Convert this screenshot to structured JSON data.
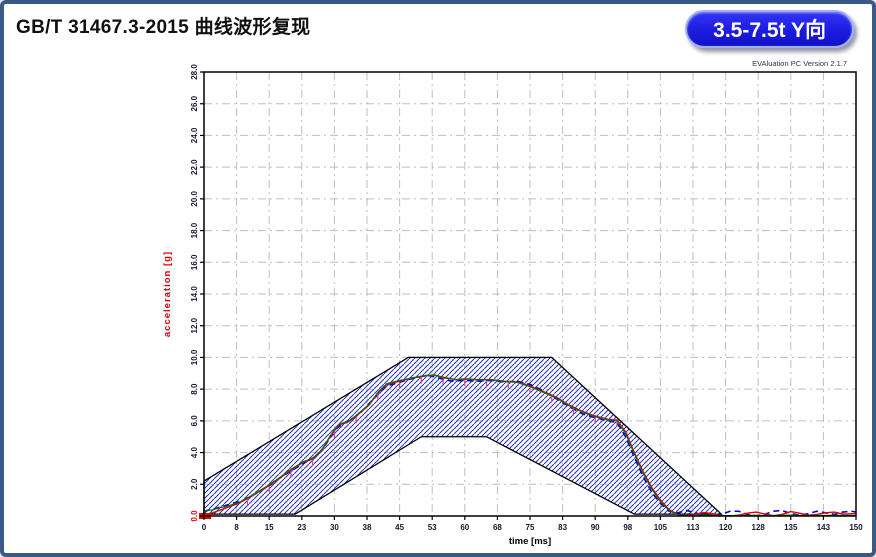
{
  "page": {
    "title": "GB/T 31467.3-2015 曲线波形复现",
    "badge_label": "3.5-7.5t Y向",
    "version_text": "EVAluation PC Version 2.1.7"
  },
  "colors": {
    "page_border": "#3a5a86",
    "badge_bg": "#1c1cdf",
    "badge_text": "#ffffff",
    "corridor_hatch": "#2030c0",
    "corridor_outline": "#000000",
    "grid": "#bdbdbd",
    "axis": "#000000",
    "tick_label": "#141830",
    "zero_label": "#dd0000",
    "ylabel_color": "#dd0000"
  },
  "chart_data": {
    "type": "line",
    "title": "",
    "xlabel": "time [ms]",
    "ylabel": "acceleration [g]",
    "xlim": [
      0,
      150
    ],
    "ylim": [
      0,
      28
    ],
    "grid": true,
    "legend": "none",
    "x_tick_values": [
      0,
      7.5,
      15,
      22.5,
      30,
      37.5,
      45,
      52.5,
      60,
      67.5,
      75,
      82.5,
      90,
      97.5,
      105,
      112.5,
      120,
      127.5,
      135,
      142.5,
      150
    ],
    "x_tick_labels": [
      "0",
      "8",
      "15",
      "23",
      "30",
      "38",
      "45",
      "53",
      "60",
      "68",
      "75",
      "83",
      "90",
      "98",
      "105",
      "113",
      "120",
      "128",
      "135",
      "143",
      "150"
    ],
    "y_tick_values": [
      0,
      2,
      4,
      6,
      8,
      10,
      12,
      14,
      16,
      18,
      20,
      22,
      24,
      26,
      28
    ],
    "y_tick_labels": [
      "0.0",
      "2.0",
      "4.0",
      "6.0",
      "8.0",
      "10.0",
      "12.0",
      "14.0",
      "16.0",
      "18.0",
      "20.0",
      "22.0",
      "24.0",
      "26.0",
      "28.0"
    ],
    "corridor": {
      "upper": [
        [
          0,
          2.2
        ],
        [
          47,
          10
        ],
        [
          80,
          10
        ],
        [
          119,
          0.12
        ]
      ],
      "lower": [
        [
          0,
          0.12
        ],
        [
          21,
          0.12
        ],
        [
          50,
          5
        ],
        [
          65,
          5
        ],
        [
          99,
          0.12
        ],
        [
          119,
          0.12
        ]
      ]
    },
    "series": [
      {
        "name": "measured-curve",
        "color": "#0000dd",
        "dash": "6 4",
        "width": 1.6,
        "points": [
          [
            0,
            0.3
          ],
          [
            3,
            0.5
          ],
          [
            6,
            0.75
          ],
          [
            9,
            1.0
          ],
          [
            12,
            1.45
          ],
          [
            15,
            1.9
          ],
          [
            18,
            2.5
          ],
          [
            21,
            3.0
          ],
          [
            24,
            3.5
          ],
          [
            26,
            3.8
          ],
          [
            28,
            4.5
          ],
          [
            30,
            5.4
          ],
          [
            32,
            5.85
          ],
          [
            34,
            6.1
          ],
          [
            36,
            6.5
          ],
          [
            38,
            7.1
          ],
          [
            40,
            7.7
          ],
          [
            42,
            8.2
          ],
          [
            44,
            8.35
          ],
          [
            47,
            8.6
          ],
          [
            50,
            8.8
          ],
          [
            52,
            8.85
          ],
          [
            54,
            8.7
          ],
          [
            57,
            8.5
          ],
          [
            60,
            8.55
          ],
          [
            63,
            8.5
          ],
          [
            66,
            8.55
          ],
          [
            69,
            8.45
          ],
          [
            72,
            8.5
          ],
          [
            75,
            8.3
          ],
          [
            78,
            7.9
          ],
          [
            81,
            7.4
          ],
          [
            84,
            6.9
          ],
          [
            87,
            6.45
          ],
          [
            90,
            6.2
          ],
          [
            93,
            6.0
          ],
          [
            95,
            5.9
          ],
          [
            97,
            5.0
          ],
          [
            99,
            3.7
          ],
          [
            101,
            2.5
          ],
          [
            103,
            1.5
          ],
          [
            105,
            0.8
          ],
          [
            107,
            0.3
          ],
          [
            109,
            0.2
          ],
          [
            111,
            0.35
          ],
          [
            113,
            0.2
          ],
          [
            115,
            0.05
          ],
          [
            117,
            0.0
          ],
          [
            119,
            0.1
          ],
          [
            121,
            0.3
          ],
          [
            123,
            0.3
          ],
          [
            125,
            0.1
          ],
          [
            127,
            0.02
          ],
          [
            129,
            0.1
          ],
          [
            131,
            0.3
          ],
          [
            133,
            0.35
          ],
          [
            135,
            0.15
          ],
          [
            137,
            0.05
          ],
          [
            139,
            0.15
          ],
          [
            141,
            0.3
          ],
          [
            143,
            0.2
          ],
          [
            145,
            0.1
          ],
          [
            147,
            0.25
          ],
          [
            149,
            0.3
          ],
          [
            150,
            0.25
          ]
        ]
      },
      {
        "name": "reference-curve",
        "color": "#e10000",
        "dash": "",
        "width": 1.4,
        "points": [
          [
            0,
            0.05
          ],
          [
            2,
            0.2
          ],
          [
            5,
            0.5
          ],
          [
            8,
            0.8
          ],
          [
            11,
            1.25
          ],
          [
            14,
            1.75
          ],
          [
            17,
            2.3
          ],
          [
            20,
            2.9
          ],
          [
            23,
            3.4
          ],
          [
            25,
            3.6
          ],
          [
            27,
            4.1
          ],
          [
            29,
            5.0
          ],
          [
            31,
            5.75
          ],
          [
            33,
            5.9
          ],
          [
            35,
            6.3
          ],
          [
            38,
            7.0
          ],
          [
            40,
            7.75
          ],
          [
            42,
            8.3
          ],
          [
            45,
            8.5
          ],
          [
            48,
            8.7
          ],
          [
            51,
            8.85
          ],
          [
            53,
            8.9
          ],
          [
            55,
            8.75
          ],
          [
            58,
            8.6
          ],
          [
            60,
            8.65
          ],
          [
            63,
            8.6
          ],
          [
            66,
            8.6
          ],
          [
            69,
            8.5
          ],
          [
            72,
            8.45
          ],
          [
            75,
            8.2
          ],
          [
            78,
            7.85
          ],
          [
            81,
            7.5
          ],
          [
            84,
            7.0
          ],
          [
            87,
            6.6
          ],
          [
            90,
            6.3
          ],
          [
            93,
            6.1
          ],
          [
            95,
            6.05
          ],
          [
            97,
            5.3
          ],
          [
            99,
            4.0
          ],
          [
            101,
            2.8
          ],
          [
            103,
            1.8
          ],
          [
            105,
            1.0
          ],
          [
            107,
            0.4
          ],
          [
            109,
            0.08
          ],
          [
            111,
            0.02
          ],
          [
            113,
            0.1
          ],
          [
            115,
            0.22
          ],
          [
            117,
            0.15
          ],
          [
            119,
            0.02
          ],
          [
            121,
            0.0
          ],
          [
            123,
            0.05
          ],
          [
            125,
            0.18
          ],
          [
            127,
            0.25
          ],
          [
            129,
            0.12
          ],
          [
            131,
            0.02
          ],
          [
            133,
            0.1
          ],
          [
            135,
            0.28
          ],
          [
            137,
            0.18
          ],
          [
            139,
            0.05
          ],
          [
            141,
            0.1
          ],
          [
            143,
            0.2
          ],
          [
            145,
            0.25
          ],
          [
            147,
            0.12
          ],
          [
            150,
            0.15
          ]
        ]
      },
      {
        "name": "filtered-curve",
        "color": "#007a00",
        "dash": "",
        "width": 1.1,
        "points": [
          [
            0,
            0.3
          ],
          [
            2,
            0.4
          ],
          [
            5,
            0.6
          ],
          [
            8,
            0.85
          ],
          [
            11,
            1.3
          ],
          [
            14,
            1.8
          ],
          [
            17,
            2.35
          ],
          [
            20,
            2.95
          ],
          [
            23,
            3.45
          ],
          [
            25,
            3.65
          ],
          [
            27,
            4.15
          ],
          [
            29,
            5.05
          ],
          [
            31,
            5.8
          ],
          [
            33,
            5.95
          ],
          [
            35,
            6.35
          ],
          [
            38,
            7.05
          ],
          [
            40,
            7.8
          ],
          [
            42,
            8.35
          ],
          [
            45,
            8.55
          ],
          [
            48,
            8.72
          ],
          [
            51,
            8.87
          ],
          [
            53,
            8.88
          ],
          [
            55,
            8.72
          ],
          [
            58,
            8.58
          ],
          [
            60,
            8.62
          ],
          [
            63,
            8.58
          ],
          [
            66,
            8.58
          ],
          [
            69,
            8.48
          ],
          [
            72,
            8.42
          ],
          [
            75,
            8.15
          ],
          [
            78,
            7.8
          ],
          [
            81,
            7.45
          ],
          [
            84,
            6.95
          ],
          [
            87,
            6.55
          ],
          [
            90,
            6.25
          ],
          [
            93,
            6.05
          ],
          [
            95,
            6.0
          ],
          [
            97,
            5.2
          ],
          [
            99,
            3.9
          ],
          [
            101,
            2.7
          ],
          [
            103,
            1.7
          ],
          [
            105,
            0.9
          ],
          [
            107,
            0.35
          ],
          [
            109,
            0.05
          ],
          [
            112,
            0.02
          ],
          [
            115,
            0.05
          ],
          [
            120,
            0.02
          ],
          [
            125,
            0.05
          ],
          [
            130,
            0.03
          ],
          [
            135,
            0.06
          ],
          [
            140,
            0.03
          ],
          [
            145,
            0.05
          ],
          [
            150,
            0.03
          ]
        ]
      }
    ],
    "deviation_markers": {
      "color": "#f23399",
      "times": [
        10,
        15,
        20,
        25,
        30,
        35,
        40,
        45,
        50,
        55,
        60,
        65,
        70,
        75,
        80,
        85,
        90,
        95
      ],
      "length_g": 0.45
    },
    "origin_marker": {
      "color": "#dd0000",
      "x": 0,
      "y": 0
    }
  }
}
